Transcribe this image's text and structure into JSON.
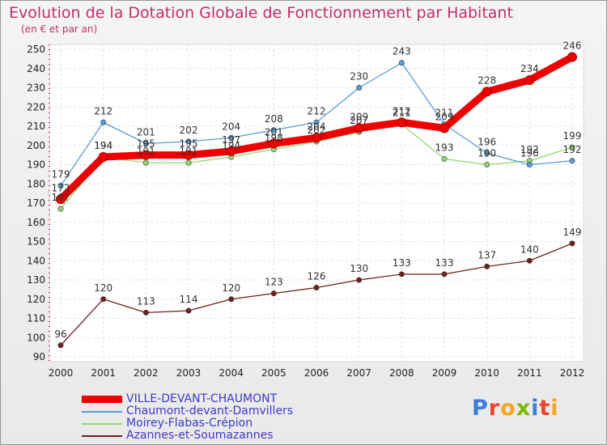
{
  "header": {
    "title": "Evolution de la Dotation Globale de Fonctionnement par Habitant",
    "subtitle": "(en € et par an)"
  },
  "logo": {
    "text": "Proxiti"
  },
  "chart_data": {
    "type": "line",
    "x": [
      "2000",
      "2001",
      "2002",
      "2003",
      "2004",
      "2005",
      "2006",
      "2007",
      "2008",
      "2009",
      "2010",
      "2011",
      "2012"
    ],
    "ylim": [
      90,
      250
    ],
    "yticks": [
      90,
      100,
      110,
      120,
      130,
      140,
      150,
      160,
      170,
      180,
      190,
      200,
      210,
      220,
      230,
      240,
      250
    ],
    "grid": true,
    "legend": "bottom-left",
    "series": [
      {
        "name": "VILLE-DEVANT-CHAUMONT",
        "color": "#ee0000",
        "values": [
          172,
          194,
          195,
          195,
          197,
          201,
          204,
          209,
          212,
          209,
          228,
          234,
          246
        ]
      },
      {
        "name": "Chaumont-devant-Damvillers",
        "color": "#5b9bd5",
        "values": [
          179,
          212,
          201,
          202,
          204,
          208,
          212,
          230,
          243,
          211,
          196,
          190,
          192
        ]
      },
      {
        "name": "Moirey-Flabas-Crépion",
        "color": "#90d870",
        "values": [
          167,
          194,
          191,
          191,
          194,
          198,
          202,
          207,
          211,
          193,
          190,
          192,
          199
        ]
      },
      {
        "name": "Azannes-et-Soumazannes",
        "color": "#6e2020",
        "values": [
          96,
          120,
          113,
          114,
          120,
          123,
          126,
          130,
          133,
          133,
          137,
          140,
          149
        ]
      }
    ]
  }
}
